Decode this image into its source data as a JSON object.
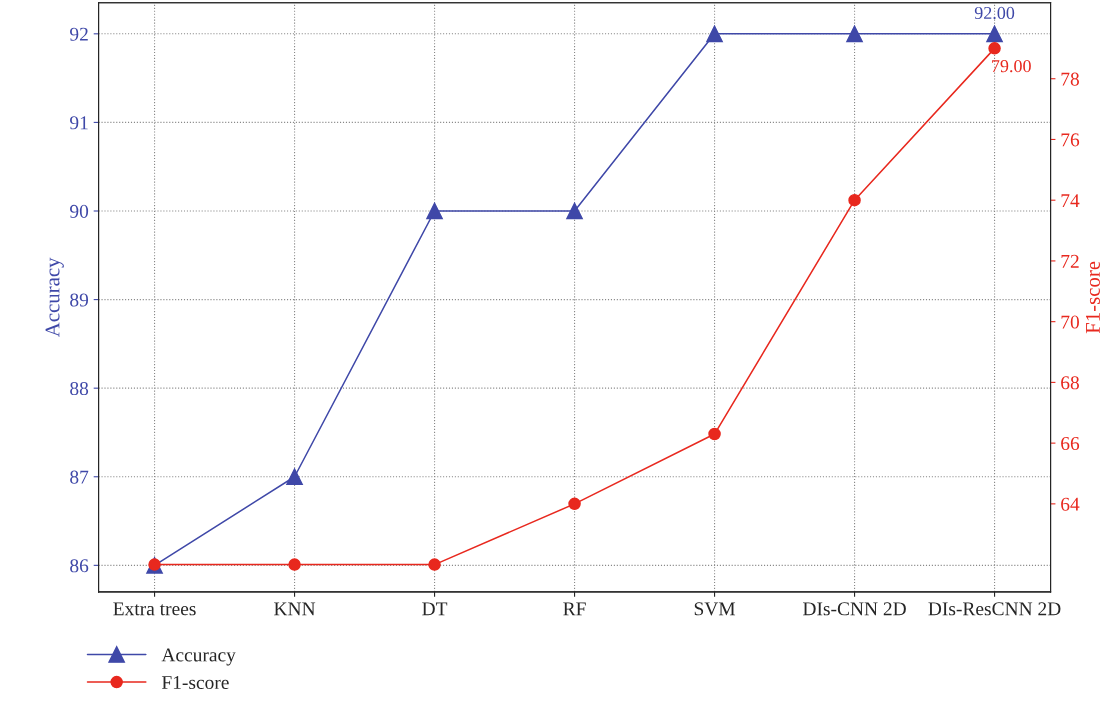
{
  "chart_data": {
    "type": "line",
    "ylabel": "Accuracy",
    "y2label": "F1-score",
    "categories": [
      "Extra trees",
      "KNN",
      "DT",
      "RF",
      "SVM",
      "DIs-CNN 2D",
      "DIs-ResCNN 2D"
    ],
    "series": [
      {
        "name": "Accuracy",
        "color": "#3f48a8",
        "marker": "triangle",
        "values": [
          86,
          87,
          90,
          90,
          92,
          92,
          92
        ],
        "value_labels": [
          null,
          null,
          null,
          null,
          null,
          null,
          "92.00"
        ]
      },
      {
        "name": "F1-score",
        "color": "#e8281e",
        "marker": "circle",
        "axis": "y2",
        "values": [
          62,
          62,
          62,
          64,
          66.3,
          74,
          79
        ],
        "value_labels": [
          null,
          null,
          null,
          null,
          null,
          null,
          "79.00"
        ]
      }
    ],
    "ylim": [
      85.7,
      92.35
    ],
    "yticks": [
      86,
      87,
      88,
      89,
      90,
      91,
      92
    ],
    "y2lim": [
      61.1,
      80.5
    ],
    "y2ticks": [
      64,
      66,
      68,
      70,
      72,
      74,
      76,
      78
    ],
    "grid": true,
    "legend": "bottom left",
    "line_style": "solid"
  }
}
